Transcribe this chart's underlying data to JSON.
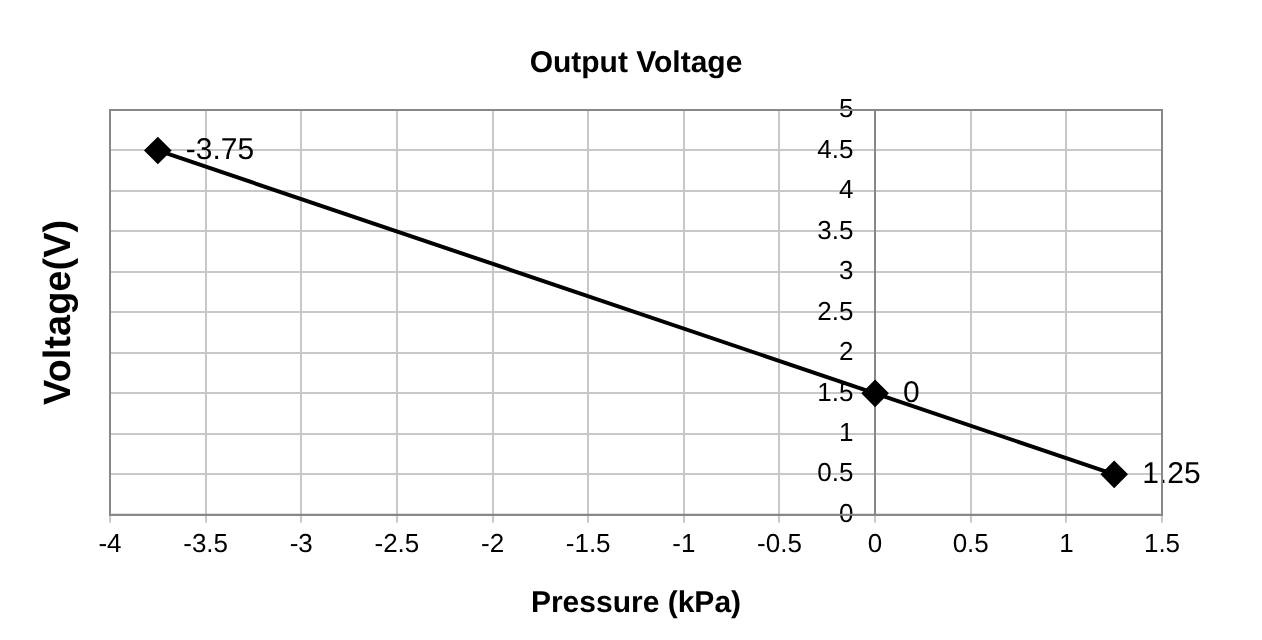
{
  "chart_data": {
    "type": "line",
    "title": "Output Voltage",
    "xlabel": "Pressure (kPa)",
    "ylabel": "Voltage(V)",
    "x": [
      -3.75,
      0,
      1.25
    ],
    "series": [
      {
        "color": "#000000",
        "values": [
          4.5,
          1.5,
          0.5
        ]
      }
    ],
    "annotations": [
      {
        "text": "-3.75",
        "x": -3.75,
        "y": 4.5
      },
      {
        "text": "0",
        "x": 0,
        "y": 1.5
      },
      {
        "text": "1.25",
        "x": 1.25,
        "y": 0.5
      }
    ],
    "xlim": [
      -4,
      1.5
    ],
    "xticks": [
      -4,
      -3.5,
      -3,
      -2.5,
      -2,
      -1.5,
      -1,
      -0.5,
      0,
      0.5,
      1,
      1.5
    ],
    "ylim": [
      0,
      5
    ],
    "yticks": [
      0,
      0.5,
      1,
      1.5,
      2,
      2.5,
      3,
      3.5,
      4,
      4.5,
      5
    ],
    "grid": true,
    "marker": "diamond",
    "line_style": "solid",
    "legend": false
  }
}
